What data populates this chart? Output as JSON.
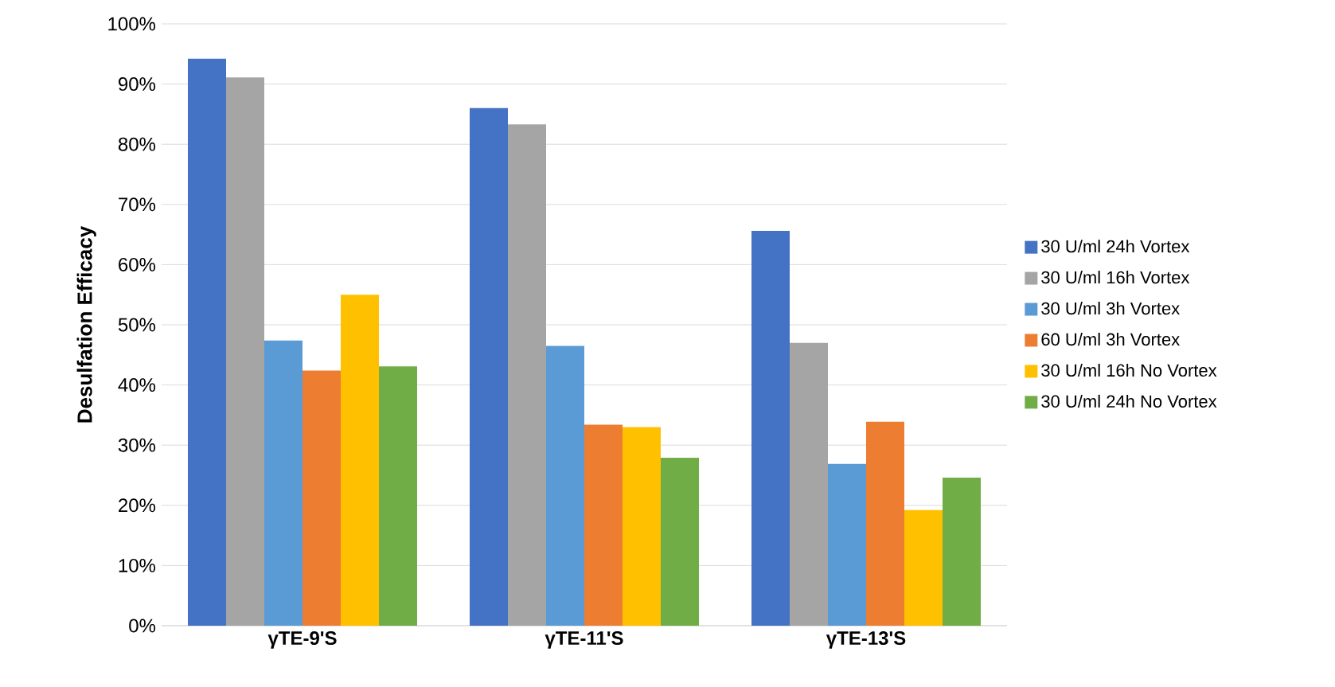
{
  "chart_data": {
    "type": "bar",
    "ylabel": "Desulfation Efficacy",
    "categories": [
      "γTE-9'S",
      "γTE-11'S",
      "γTE-13'S"
    ],
    "series": [
      {
        "name": "30 U/ml 24h Vortex",
        "color": "#4472c4",
        "values": [
          94.2,
          86.0,
          65.6
        ]
      },
      {
        "name": "30 U/ml 16h Vortex",
        "color": "#a5a5a5",
        "values": [
          91.1,
          83.3,
          47.0
        ]
      },
      {
        "name": "30 U/ml 3h Vortex",
        "color": "#5b9bd5",
        "values": [
          47.4,
          46.5,
          26.9
        ]
      },
      {
        "name": "60 U/ml 3h Vortex",
        "color": "#ed7d31",
        "values": [
          42.4,
          33.4,
          33.9
        ]
      },
      {
        "name": "30 U/ml 16h No Vortex",
        "color": "#ffc000",
        "values": [
          55.0,
          33.0,
          19.2
        ]
      },
      {
        "name": "30 U/ml 24h No Vortex",
        "color": "#70ad47",
        "values": [
          43.1,
          27.9,
          24.6
        ]
      }
    ],
    "ylim": [
      0,
      100
    ],
    "yticks": [
      {
        "value": 0,
        "label": "0%"
      },
      {
        "value": 10,
        "label": "10%"
      },
      {
        "value": 20,
        "label": "20%"
      },
      {
        "value": 30,
        "label": "30%"
      },
      {
        "value": 40,
        "label": "40%"
      },
      {
        "value": 50,
        "label": "50%"
      },
      {
        "value": 60,
        "label": "60%"
      },
      {
        "value": 70,
        "label": "70%"
      },
      {
        "value": 80,
        "label": "80%"
      },
      {
        "value": 90,
        "label": "90%"
      },
      {
        "value": 100,
        "label": "100%"
      }
    ],
    "grid": "y",
    "legend": "right"
  }
}
